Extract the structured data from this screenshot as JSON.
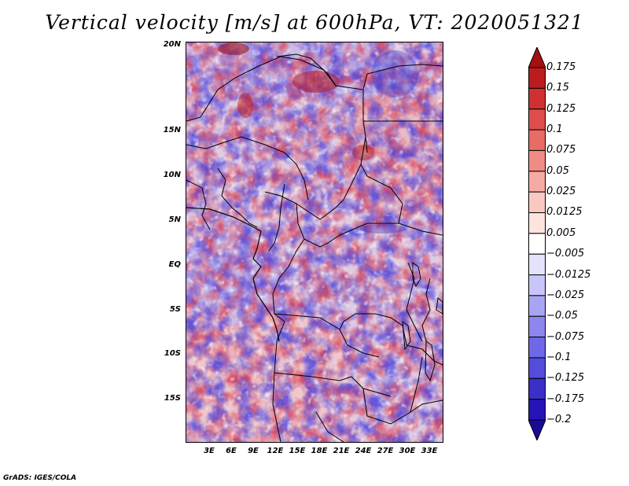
{
  "title": "Vertical velocity [m/s] at 600hPa, VT: 2020051321",
  "footer": "GrADS: IGES/COLA",
  "map": {
    "lat_labels": [
      "20N",
      "15N",
      "10N",
      "5N",
      "EQ",
      "5S",
      "10S",
      "15S"
    ],
    "lon_labels": [
      "3E",
      "6E",
      "9E",
      "12E",
      "15E",
      "18E",
      "21E",
      "24E",
      "27E",
      "30E",
      "33E"
    ],
    "field": "vertical velocity",
    "positive_color": "#c41a1a",
    "negative_color": "#3a2fd0"
  },
  "colorbar": {
    "labels": [
      "0.175",
      "0.15",
      "0.125",
      "0.1",
      "0.075",
      "0.05",
      "0.025",
      "0.0125",
      "0.005",
      "-0.005",
      "-0.0125",
      "-0.025",
      "-0.05",
      "-0.075",
      "-0.1",
      "-0.125",
      "-0.175",
      "-0.2"
    ],
    "colors": [
      "#a40f12",
      "#bd1c1f",
      "#d0302f",
      "#de4d4a",
      "#e86b66",
      "#ef8c86",
      "#f5aaa3",
      "#fac8c2",
      "#fde4df",
      "#ffffff",
      "#e4e3fc",
      "#c8c5fa",
      "#a9a5f5",
      "#8d86ef",
      "#6f68e6",
      "#544cdb",
      "#3b2fcc",
      "#2614b8",
      "#1a0a9a"
    ]
  }
}
